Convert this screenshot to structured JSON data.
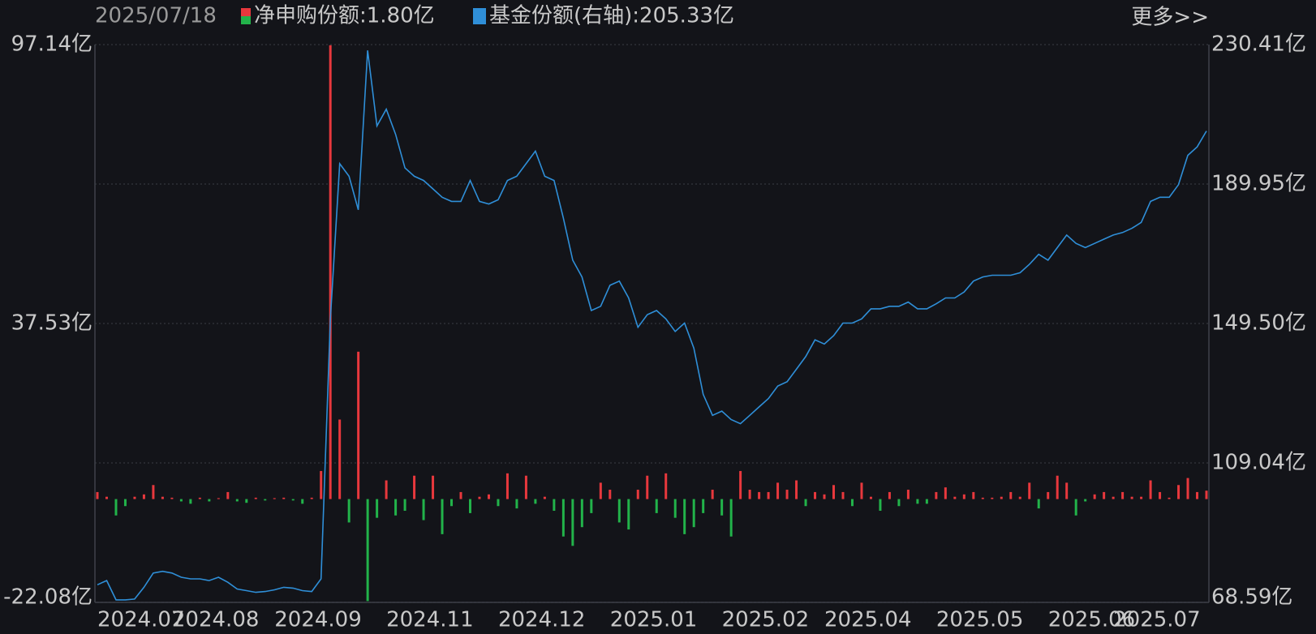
{
  "chart_data": {
    "type": "combo",
    "date": "2025/07/18",
    "more": "更多>>",
    "legend": [
      "净申购份额:1.80亿",
      "基金份额(右轴):205.33亿"
    ],
    "categories": [
      "2024.07",
      null,
      null,
      null,
      null,
      null,
      null,
      null,
      "2024.08",
      null,
      null,
      null,
      null,
      null,
      null,
      null,
      null,
      null,
      null,
      "2024.09",
      null,
      null,
      null,
      null,
      null,
      null,
      null,
      null,
      null,
      null,
      null,
      "2024.11",
      null,
      null,
      null,
      null,
      null,
      null,
      null,
      null,
      null,
      null,
      null,
      "2024.12",
      null,
      null,
      null,
      null,
      null,
      null,
      null,
      null,
      null,
      null,
      null,
      "2025.01",
      null,
      null,
      null,
      null,
      null,
      null,
      null,
      null,
      null,
      null,
      null,
      "2025.02",
      null,
      null,
      null,
      null,
      null,
      null,
      null,
      null,
      null,
      null,
      "2025.04",
      null,
      null,
      null,
      null,
      null,
      null,
      null,
      null,
      null,
      null,
      null,
      "2025.05",
      null,
      null,
      null,
      null,
      null,
      null,
      null,
      null,
      null,
      null,
      null,
      "2025.06",
      null,
      null,
      null,
      null,
      null,
      null,
      "2025.07",
      null,
      null,
      null,
      null,
      null,
      null,
      null,
      null,
      null,
      null
    ],
    "series": [
      {
        "type": "bar",
        "axis": "y",
        "up_color": "#e8383d",
        "down_color": "#22b34a",
        "values": [
          1.5,
          0.5,
          -3.5,
          -1.5,
          0.5,
          1.0,
          3.0,
          0.5,
          0.3,
          -0.5,
          -1.0,
          0.3,
          -0.5,
          0.2,
          1.5,
          -0.5,
          -0.8,
          0.3,
          -0.3,
          0.2,
          0.3,
          -0.3,
          -1.0,
          0.3,
          6.0,
          97.0,
          17.0,
          -5.0,
          31.5,
          -21.8,
          -4.0,
          4.0,
          -3.5,
          -2.5,
          5.0,
          -4.5,
          5.0,
          -7.5,
          -1.5,
          1.5,
          -3.0,
          0.5,
          1.0,
          -1.5,
          5.5,
          -2.0,
          5.0,
          -1.0,
          0.5,
          -2.5,
          -8.0,
          -10.0,
          -6.0,
          -3.0,
          3.5,
          2.0,
          -5.0,
          -6.5,
          2.0,
          5.0,
          -3.0,
          5.5,
          -4.0,
          -7.5,
          -6.0,
          -3.0,
          2.0,
          -3.5,
          -8.0,
          6.0,
          2.0,
          1.5,
          1.5,
          3.5,
          2.0,
          4.0,
          -1.5,
          1.5,
          1.0,
          3.0,
          1.5,
          -1.5,
          3.5,
          0.5,
          -2.5,
          1.5,
          -1.5,
          2.0,
          -1.0,
          -1.0,
          1.5,
          2.5,
          0.5,
          1.0,
          1.5,
          0.3,
          0.3,
          0.5,
          1.5,
          0.5,
          3.5,
          -2.0,
          1.5,
          5.0,
          3.5,
          -3.5,
          -0.5,
          1.0,
          1.5,
          0.5,
          1.5,
          0.5,
          0.5,
          4.0,
          1.5,
          0.3,
          3.0,
          4.5,
          1.5,
          1.8
        ]
      },
      {
        "type": "line",
        "axis": "y2",
        "color": "#2f8fd8",
        "values": [
          73.7,
          74.92,
          69.32,
          69.32,
          69.56,
          72.97,
          77.11,
          77.59,
          77.11,
          75.89,
          75.4,
          75.4,
          74.92,
          75.89,
          74.43,
          72.48,
          72.0,
          71.51,
          71.75,
          72.24,
          72.97,
          72.73,
          72.0,
          71.75,
          75.4,
          150.84,
          195.86,
          192.21,
          182.47,
          228.71,
          206.81,
          211.67,
          204.37,
          194.64,
          192.21,
          190.99,
          188.56,
          186.12,
          184.91,
          184.91,
          190.99,
          184.91,
          184.18,
          185.39,
          190.99,
          192.21,
          195.86,
          199.51,
          192.21,
          190.99,
          180.04,
          167.87,
          163.0,
          153.27,
          154.49,
          160.57,
          161.79,
          156.92,
          148.4,
          152.05,
          153.27,
          150.84,
          147.19,
          149.62,
          142.32,
          128.94,
          122.85,
          124.07,
          121.64,
          120.42,
          122.85,
          125.29,
          127.72,
          131.37,
          132.59,
          136.24,
          139.89,
          144.75,
          143.54,
          145.97,
          149.62,
          149.62,
          150.84,
          153.76,
          153.76,
          154.49,
          154.49,
          155.7,
          153.76,
          153.76,
          155.22,
          156.92,
          156.92,
          158.62,
          161.79,
          163.0,
          163.49,
          163.49,
          163.49,
          164.22,
          166.65,
          169.57,
          167.87,
          171.52,
          175.17,
          172.74,
          171.52,
          172.74,
          173.96,
          175.17,
          175.9,
          177.12,
          178.82,
          184.91,
          186.12,
          186.12,
          189.77,
          198.29,
          200.72,
          205.33
        ]
      }
    ],
    "ylim": [
      -22.08,
      97.14
    ],
    "yticks": [
      {
        "value": -22.08,
        "label": "-22.08亿"
      },
      {
        "value": 37.53,
        "label": "37.53亿"
      },
      {
        "value": 97.14,
        "label": "97.14亿"
      }
    ],
    "y2lim": [
      68.59,
      230.41
    ],
    "y2ticks": [
      {
        "value": 68.59,
        "label": "68.59亿"
      },
      {
        "value": 109.04,
        "label": "109.04亿"
      },
      {
        "value": 149.5,
        "label": "149.50亿"
      },
      {
        "value": 189.95,
        "label": "189.95亿"
      },
      {
        "value": 230.41,
        "label": "230.41亿"
      }
    ],
    "grid": true
  }
}
